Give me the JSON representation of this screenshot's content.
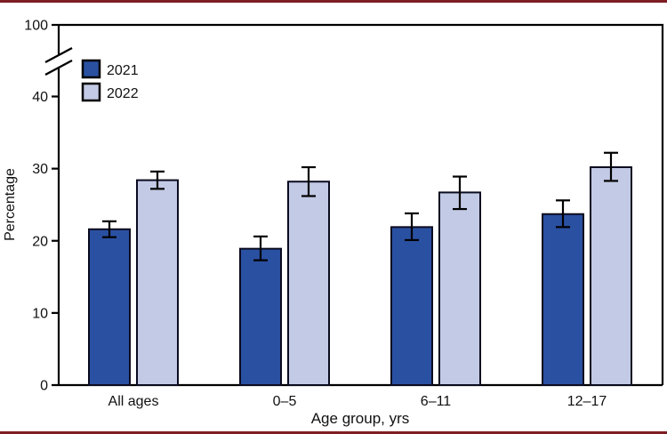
{
  "figure": {
    "top_rule_color": "#7e1d23",
    "bottom_rule_color": "#7e1d23",
    "background": "#ffffff",
    "text_color": "#111111"
  },
  "chart_data": {
    "type": "bar",
    "title": "",
    "xlabel": "Age group, yrs",
    "ylabel": "Percentage",
    "categories": [
      "All ages",
      "0–5",
      "6–11",
      "12–17"
    ],
    "series": [
      {
        "name": "2021",
        "color": "#2a50a1",
        "values": [
          21.6,
          18.9,
          21.9,
          23.7
        ],
        "ci_low": [
          20.5,
          17.3,
          20.1,
          21.9
        ],
        "ci_high": [
          22.7,
          20.6,
          23.8,
          25.6
        ]
      },
      {
        "name": "2022",
        "color": "#c2cae5",
        "values": [
          28.4,
          28.2,
          26.7,
          30.2
        ],
        "ci_low": [
          27.2,
          26.2,
          24.4,
          28.3
        ],
        "ci_high": [
          29.6,
          30.2,
          28.9,
          32.2
        ]
      }
    ],
    "y_axis": {
      "ticks": [
        0,
        10,
        20,
        30,
        40
      ],
      "top_tick": 100,
      "broken_axis": true,
      "ylim_linear": [
        0,
        40
      ]
    },
    "x_axis": {
      "ticks_visible": false
    },
    "legend_position": "upper-left",
    "grid": false,
    "bar_outline_color": "#0b0b20",
    "error_bar_color": "#000000",
    "frame_color": "#000000"
  }
}
